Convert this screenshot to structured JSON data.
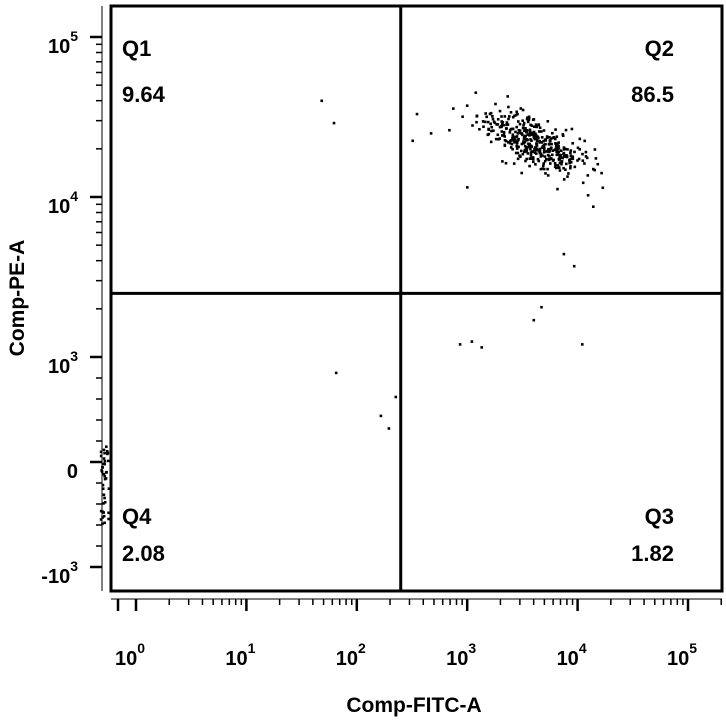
{
  "chart_data": {
    "type": "scatter",
    "xlabel": "Comp-FITC-A",
    "ylabel": "Comp-PE-A",
    "x_scale": "biexponential",
    "y_scale": "biexponential",
    "x_ticks": [
      {
        "base": "10",
        "exp": "0",
        "value": 1
      },
      {
        "base": "10",
        "exp": "1",
        "value": 10
      },
      {
        "base": "10",
        "exp": "2",
        "value": 100
      },
      {
        "base": "10",
        "exp": "3",
        "value": 1000
      },
      {
        "base": "10",
        "exp": "4",
        "value": 10000
      },
      {
        "base": "10",
        "exp": "5",
        "value": 100000
      }
    ],
    "y_ticks": [
      {
        "label": "-10",
        "exp": "3",
        "value": -1000
      },
      {
        "label": "0",
        "exp": "",
        "value": 0
      },
      {
        "label": "10",
        "exp": "3",
        "value": 1000
      },
      {
        "label": "10",
        "exp": "4",
        "value": 10000
      },
      {
        "label": "10",
        "exp": "5",
        "value": 100000
      }
    ],
    "gate": {
      "x": 250,
      "y": 2500
    },
    "quadrants": [
      {
        "name": "Q1",
        "value": "9.64",
        "corner": "top-left"
      },
      {
        "name": "Q2",
        "value": "86.5",
        "corner": "top-right"
      },
      {
        "name": "Q3",
        "value": "1.82",
        "corner": "bottom-right"
      },
      {
        "name": "Q4",
        "value": "2.08",
        "corner": "bottom-left"
      }
    ],
    "points_note": "",
    "population": {
      "cluster": {
        "x_center": 4000,
        "y_center": 22000,
        "count": 420
      },
      "singles": [
        {
          "x": 48,
          "y": 40000
        },
        {
          "x": 62,
          "y": 29000
        },
        {
          "x": 65,
          "y": 850
        },
        {
          "x": 165,
          "y": 440
        },
        {
          "x": 195,
          "y": 320
        },
        {
          "x": 225,
          "y": 620
        },
        {
          "x": 860,
          "y": 1200
        },
        {
          "x": 1100,
          "y": 1250
        },
        {
          "x": 1350,
          "y": 1150
        },
        {
          "x": 4000,
          "y": 1700
        },
        {
          "x": 4700,
          "y": 2050
        },
        {
          "x": 11000,
          "y": 1200
        },
        {
          "x": 7500,
          "y": 4400
        },
        {
          "x": 9300,
          "y": 3700
        },
        {
          "x": 1000,
          "y": 11500
        },
        {
          "x": 320,
          "y": 22500
        },
        {
          "x": 350,
          "y": 33000
        },
        {
          "x": 470,
          "y": 25000
        }
      ],
      "zero_pile": {
        "x": -3,
        "y_range": [
          -600,
          150
        ],
        "count": 40
      }
    },
    "grid": false,
    "legend": "none"
  }
}
